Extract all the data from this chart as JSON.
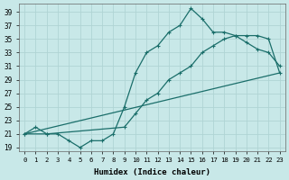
{
  "xlabel": "Humidex (Indice chaleur)",
  "background_color": "#c8e8e8",
  "line_color": "#1a6e6a",
  "grid_color": "#b0d4d4",
  "xlim": [
    -0.5,
    23.5
  ],
  "ylim": [
    18.5,
    40.2
  ],
  "xticks": [
    0,
    1,
    2,
    3,
    4,
    5,
    6,
    7,
    8,
    9,
    10,
    11,
    12,
    13,
    14,
    15,
    16,
    17,
    18,
    19,
    20,
    21,
    22,
    23
  ],
  "yticks": [
    19,
    21,
    23,
    25,
    27,
    29,
    31,
    33,
    35,
    37,
    39
  ],
  "line1_x": [
    0,
    1,
    2,
    3,
    4,
    5,
    6,
    7,
    8,
    9,
    10,
    11,
    12,
    13,
    14,
    15,
    16,
    17,
    18,
    19,
    20,
    21,
    22,
    23
  ],
  "line1_y": [
    21,
    22,
    21,
    21,
    20,
    19,
    20,
    20,
    21,
    25,
    30,
    33,
    34,
    36,
    37,
    39.5,
    38,
    36,
    36,
    35.5,
    34.5,
    33.5,
    33,
    31
  ],
  "line2_x": [
    0,
    2,
    9,
    10,
    11,
    12,
    13,
    14,
    15,
    16,
    17,
    18,
    19,
    20,
    21,
    22,
    23
  ],
  "line2_y": [
    21,
    21,
    22,
    24,
    26,
    27,
    29,
    30,
    31,
    33,
    34,
    35,
    35.5,
    35.5,
    35.5,
    35,
    30
  ],
  "line3_x": [
    0,
    23
  ],
  "line3_y": [
    21,
    30
  ]
}
